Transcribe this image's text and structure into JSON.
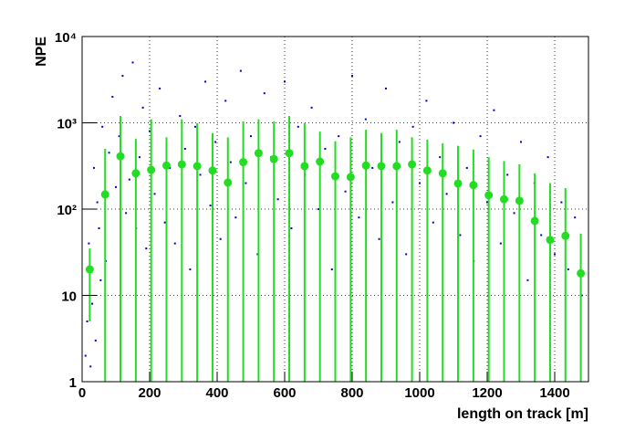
{
  "chart_data": {
    "type": "scatter",
    "xlabel": "length on track [m]",
    "ylabel": "NPE",
    "xlim": [
      0,
      1500
    ],
    "ylim": [
      1,
      10000
    ],
    "log_y": true,
    "grid": true,
    "xticks": [
      0,
      200,
      400,
      600,
      800,
      1000,
      1200,
      1400
    ],
    "yticks": [
      1,
      10,
      {
        "value": 100,
        "label": "10²"
      },
      {
        "value": 1000,
        "label": "10³"
      },
      {
        "value": 10000,
        "label": "10⁴"
      }
    ],
    "scatter": {
      "color": "#0000cc",
      "x": [
        10,
        15,
        20,
        25,
        30,
        35,
        40,
        45,
        50,
        55,
        60,
        70,
        80,
        90,
        100,
        110,
        120,
        130,
        140,
        150,
        160,
        170,
        180,
        190,
        200,
        215,
        230,
        245,
        260,
        275,
        290,
        305,
        320,
        335,
        350,
        365,
        380,
        395,
        410,
        425,
        440,
        455,
        470,
        485,
        500,
        520,
        540,
        560,
        580,
        600,
        620,
        640,
        660,
        680,
        700,
        720,
        740,
        760,
        780,
        800,
        820,
        840,
        860,
        880,
        900,
        920,
        940,
        960,
        980,
        1000,
        1020,
        1040,
        1060,
        1080,
        1100,
        1120,
        1140,
        1160,
        1180,
        1200,
        1220,
        1240,
        1260,
        1280,
        1300,
        1320,
        1340,
        1360,
        1380,
        1400,
        1420,
        1440,
        1460,
        1480
      ],
      "y": [
        2,
        5,
        40,
        1.5,
        8,
        300,
        3,
        120,
        60,
        15,
        900,
        25,
        450,
        2000,
        180,
        700,
        3500,
        90,
        220,
        5000,
        60,
        400,
        1500,
        35,
        800,
        150,
        2500,
        70,
        300,
        40,
        1200,
        500,
        20,
        900,
        250,
        3000,
        110,
        600,
        45,
        1800,
        350,
        80,
        4000,
        200,
        700,
        30,
        2200,
        400,
        130,
        3000,
        60,
        900,
        250,
        1500,
        100,
        500,
        20,
        700,
        160,
        3500,
        80,
        1100,
        300,
        45,
        2500,
        120,
        600,
        30,
        900,
        200,
        1800,
        70,
        400,
        150,
        1000,
        50,
        300,
        25,
        700,
        120,
        1400,
        40,
        250,
        90,
        600,
        15,
        200,
        50,
        400,
        30,
        120,
        20,
        80,
        10
      ]
    },
    "profile": {
      "color": "#22dd22",
      "x": [
        22.7,
        68.2,
        113.6,
        159.1,
        204.5,
        250,
        295.5,
        340.9,
        386.4,
        431.8,
        477.3,
        522.7,
        568.2,
        613.6,
        659.1,
        704.5,
        750,
        795.5,
        840.9,
        886.4,
        931.8,
        977.3,
        1022.7,
        1068.2,
        1113.6,
        1159.1,
        1204.5,
        1250,
        1295.5,
        1340.9,
        1386.4,
        1431.8,
        1477.3
      ],
      "values": [
        20,
        148,
        410,
        260,
        285,
        320,
        330,
        315,
        280,
        203,
        350,
        445,
        380,
        445,
        315,
        355,
        240,
        235,
        320,
        315,
        315,
        330,
        280,
        260,
        198,
        190,
        145,
        130,
        125,
        73,
        44,
        49,
        18
      ],
      "errors": [
        15,
        352,
        790,
        390,
        815,
        360,
        770,
        675,
        480,
        477,
        690,
        655,
        660,
        755,
        675,
        435,
        370,
        445,
        510,
        445,
        515,
        350,
        360,
        320,
        342,
        300,
        255,
        230,
        205,
        187,
        156,
        126,
        34
      ]
    }
  }
}
